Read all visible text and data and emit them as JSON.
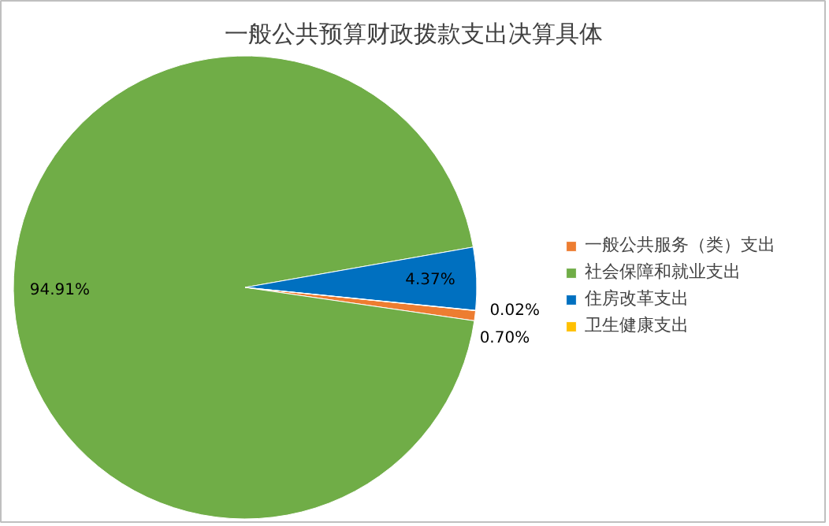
{
  "chart_data": {
    "type": "pie",
    "title": "一般公共预算财政拨款支出决算具体",
    "categories": [
      "一般公共服务（类）支出",
      "社会保障和就业支出",
      "住房改革支出",
      "卫生健康支出"
    ],
    "values": [
      0.7,
      94.91,
      4.37,
      0.02
    ],
    "colors": [
      "#ed7d31",
      "#70ad47",
      "#0070c0",
      "#ffc000"
    ],
    "value_labels": [
      "0.70%",
      "94.91%",
      "4.37%",
      "0.02%"
    ],
    "legend": "right"
  }
}
